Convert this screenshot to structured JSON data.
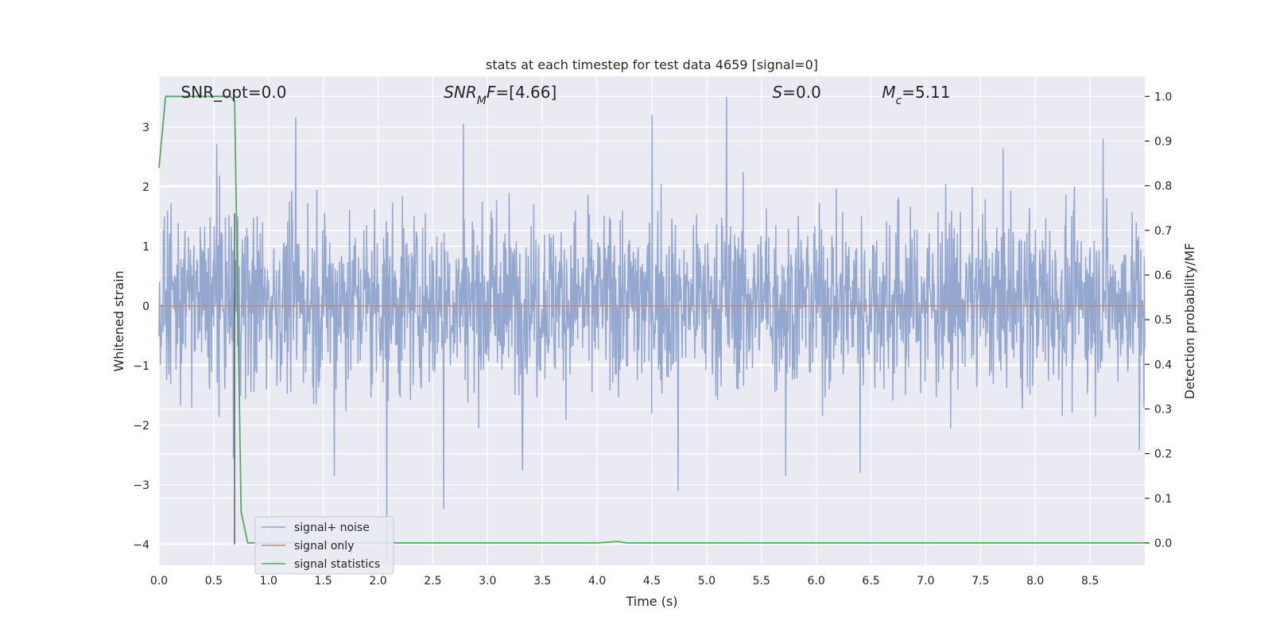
{
  "chart_data": {
    "type": "line",
    "title": "stats at each timestep for test data 4659 [signal=0]",
    "xlabel": "Time (s)",
    "ylabel": "Whitened strain",
    "y2label": "Detection probability/MF",
    "xlim": [
      0,
      9
    ],
    "ylim": [
      -4.35,
      3.85
    ],
    "y2lim": [
      -0.05,
      1.045
    ],
    "x_ticks": [
      0.0,
      0.5,
      1.0,
      1.5,
      2.0,
      2.5,
      3.0,
      3.5,
      4.0,
      4.5,
      5.0,
      5.5,
      6.0,
      6.5,
      7.0,
      7.5,
      8.0,
      8.5
    ],
    "x_tick_labels": [
      "0.0",
      "0.5",
      "1.0",
      "1.5",
      "2.0",
      "2.5",
      "3.0",
      "3.5",
      "4.0",
      "4.5",
      "5.0",
      "5.5",
      "6.0",
      "6.5",
      "7.0",
      "7.5",
      "8.0",
      "8.5"
    ],
    "y_ticks": [
      -4,
      -3,
      -2,
      -1,
      0,
      1,
      2,
      3
    ],
    "y_tick_labels": [
      "−4",
      "−3",
      "−2",
      "−1",
      "0",
      "1",
      "2",
      "3"
    ],
    "y2_ticks": [
      0.0,
      0.1,
      0.2,
      0.3,
      0.4,
      0.5,
      0.6,
      0.7,
      0.8,
      0.9,
      1.0
    ],
    "y2_tick_labels": [
      "0.0",
      "0.1",
      "0.2",
      "0.3",
      "0.4",
      "0.5",
      "0.6",
      "0.7",
      "0.8",
      "0.9",
      "1.0"
    ],
    "grid": true,
    "legend": "bottom-left",
    "annotations": [
      {
        "text": "SNR_opt=0.0",
        "x": 0.2
      },
      {
        "text": "SNR_MF=[4.66]",
        "x": 2.6
      },
      {
        "text": "S=0.0",
        "x": 5.6
      },
      {
        "text": "M_c=5.11",
        "x": 6.6
      }
    ],
    "vline": {
      "x": 0.69,
      "y_from": -4,
      "y_to": 1.55
    },
    "series": [
      {
        "name": "signal+ noise",
        "axis": "left",
        "color": "#8fa3cc",
        "kind": "noise",
        "n_samples": 2200,
        "typical_band": [
          -1.0,
          1.2
        ],
        "peaks": [
          {
            "x": 0.53,
            "y": 2.7
          },
          {
            "x": 1.25,
            "y": 3.15
          },
          {
            "x": 2.78,
            "y": 3.05
          },
          {
            "x": 4.5,
            "y": 3.2
          },
          {
            "x": 5.18,
            "y": 3.5
          },
          {
            "x": 8.62,
            "y": 2.8
          },
          {
            "x": 0.68,
            "y": -2.55
          },
          {
            "x": 1.6,
            "y": -2.85
          },
          {
            "x": 2.08,
            "y": -4.3
          },
          {
            "x": 2.6,
            "y": -3.4
          },
          {
            "x": 3.32,
            "y": -2.75
          },
          {
            "x": 4.74,
            "y": -3.1
          },
          {
            "x": 5.72,
            "y": -2.85
          },
          {
            "x": 6.4,
            "y": -2.8
          },
          {
            "x": 8.95,
            "y": -2.4
          }
        ]
      },
      {
        "name": "signal only",
        "axis": "left",
        "color": "#dd8452",
        "x": [
          0,
          9
        ],
        "y": [
          0,
          0
        ]
      },
      {
        "name": "signal statistics",
        "axis": "right",
        "color": "#55a868",
        "x": [
          0.0,
          0.06,
          0.1,
          0.2,
          0.5,
          0.65,
          0.69,
          0.75,
          0.81,
          1.0,
          4.0,
          4.19,
          4.27,
          9.0
        ],
        "y": [
          0.84,
          1.0,
          1.0,
          1.0,
          1.0,
          1.0,
          0.99,
          0.07,
          0.0,
          0.0,
          0.0,
          0.003,
          0.0,
          0.0
        ]
      }
    ]
  }
}
